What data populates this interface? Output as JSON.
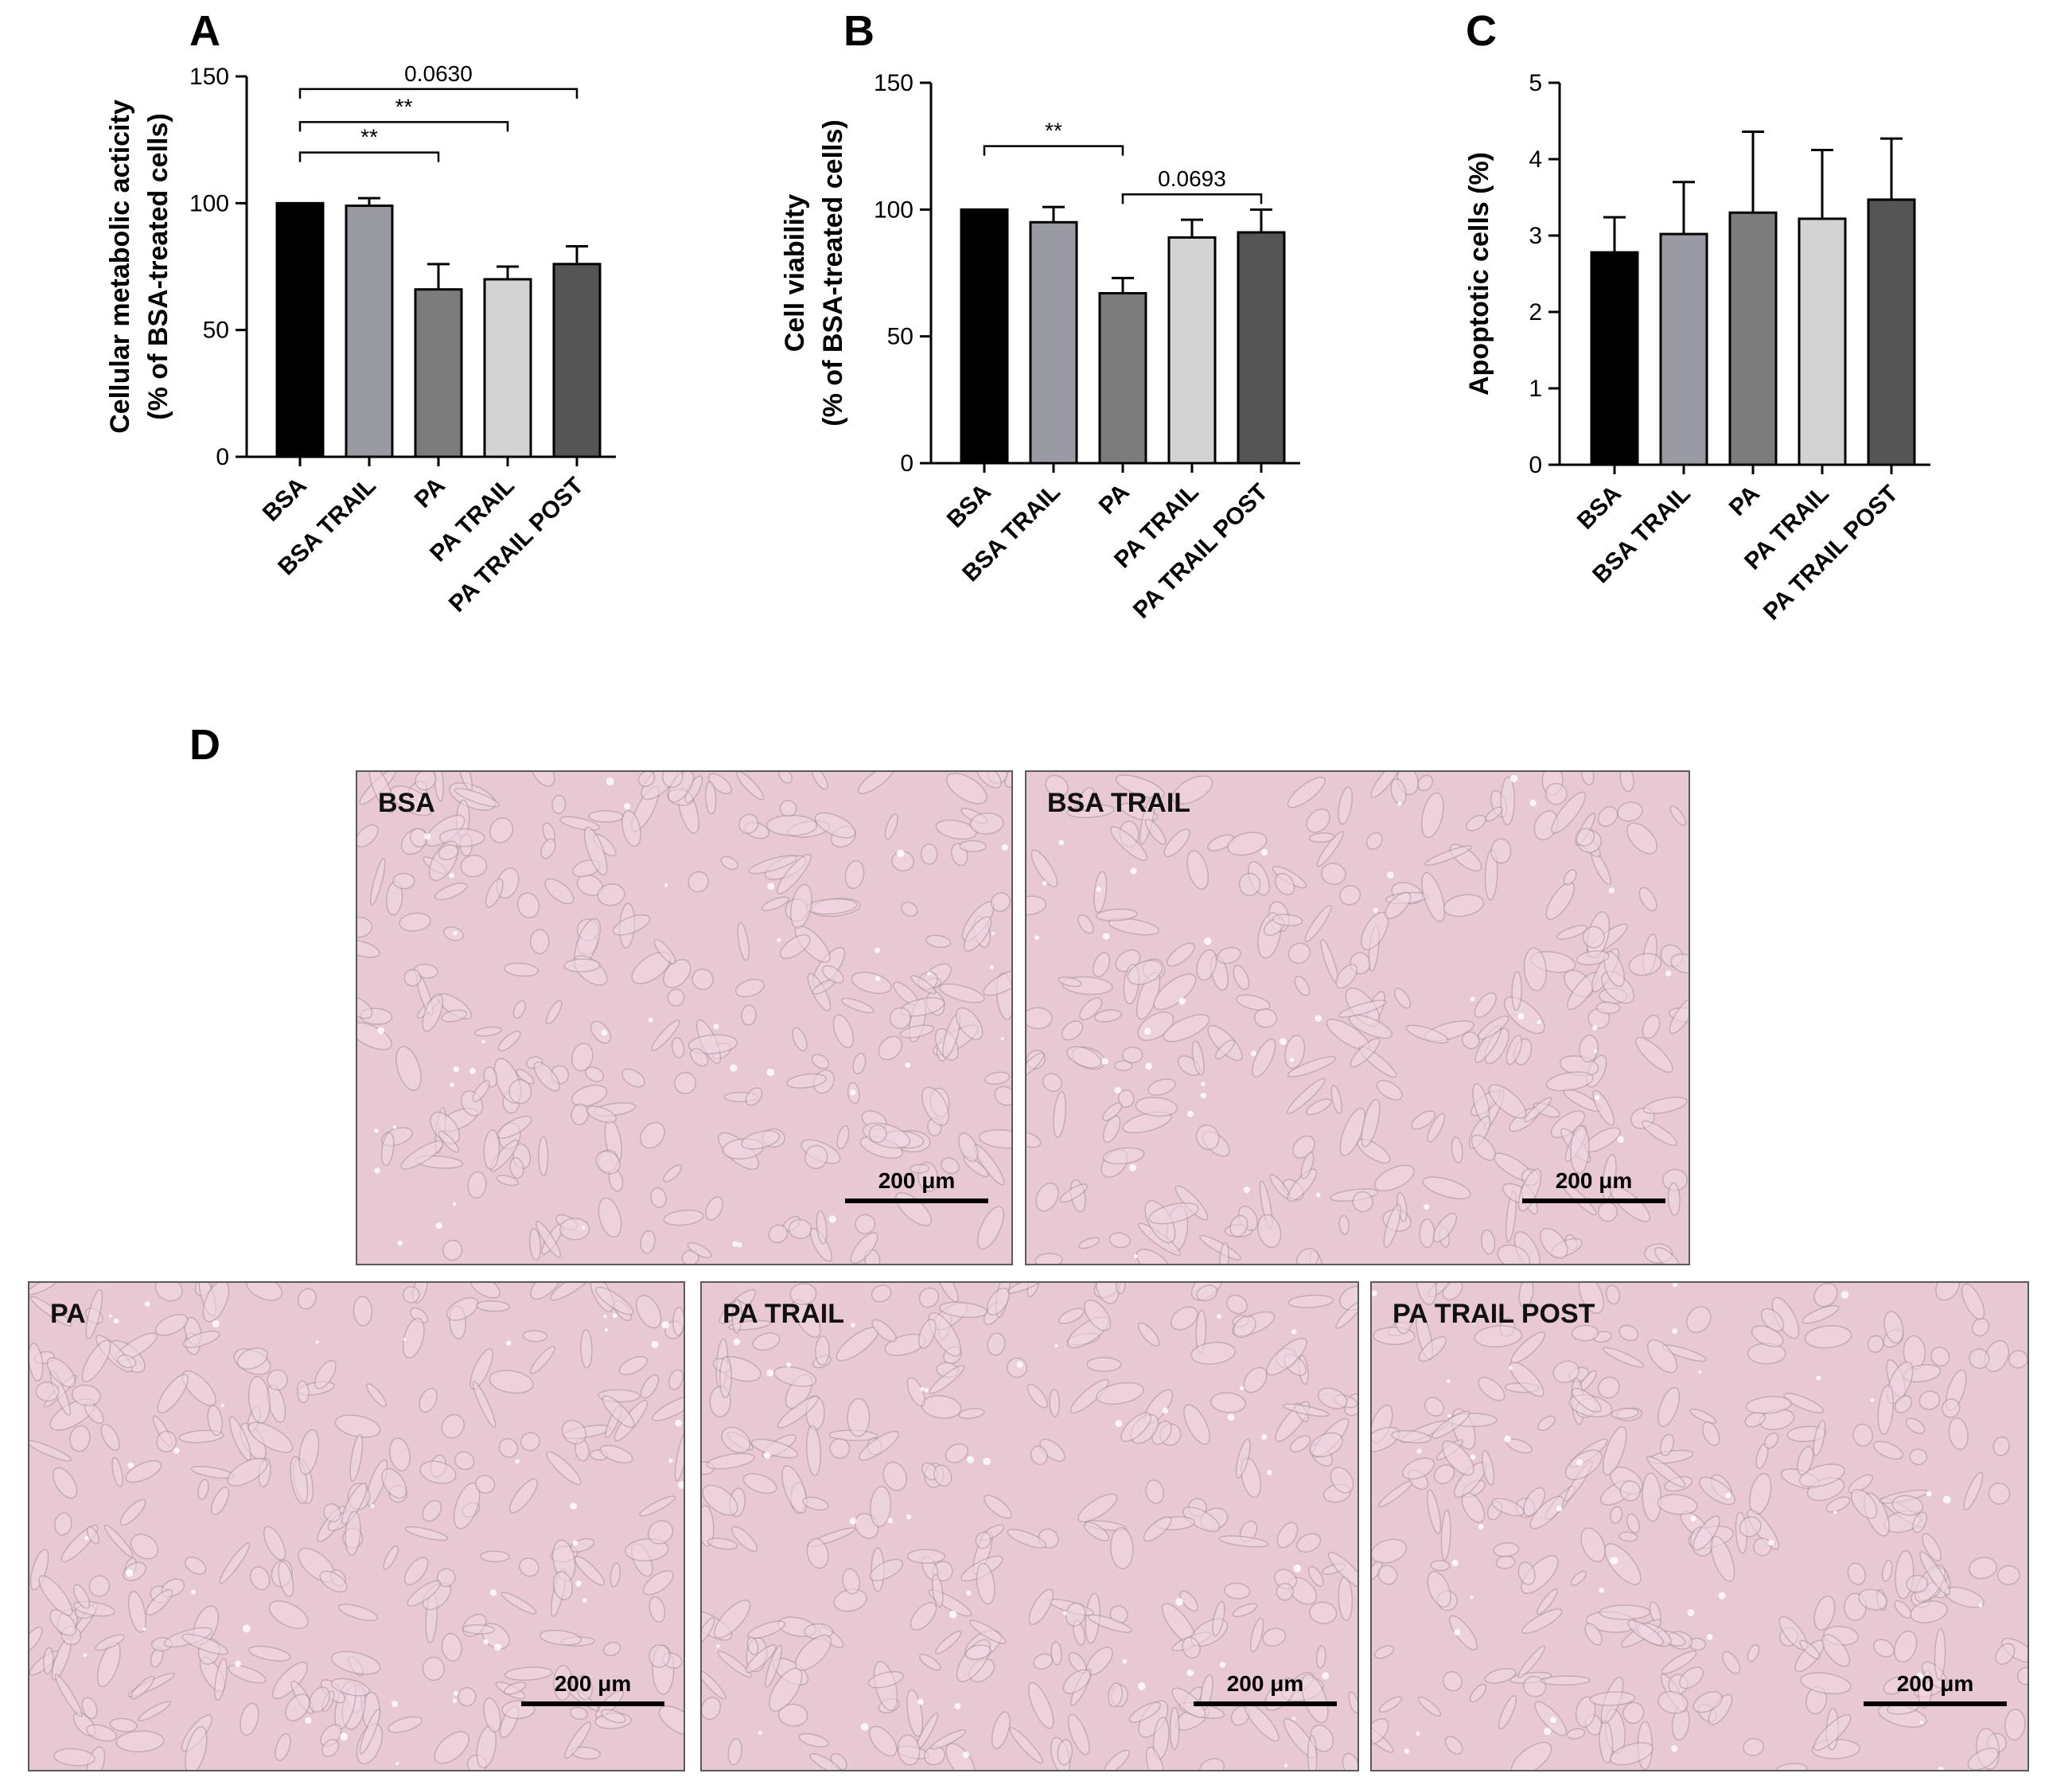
{
  "panels": {
    "a": "A",
    "b": "B",
    "c": "C",
    "d": "D"
  },
  "colors": {
    "bsa": "#000000",
    "bsa_trail": "#9a9aa3",
    "pa": "#7c7c7c",
    "pa_trail": "#d3d3d3",
    "pa_trail_post": "#555555",
    "micro_tint": "#e8c9d3"
  },
  "chart_data": [
    {
      "panel": "A",
      "type": "bar",
      "ylabel_lines": [
        "Cellular metabolic acticity",
        "(% of BSA-treated cells)"
      ],
      "xlabel": "",
      "categories": [
        "BSA",
        "BSA TRAIL",
        "PA",
        "PA TRAIL",
        "PA TRAIL POST"
      ],
      "values": [
        100,
        99,
        66,
        70,
        76
      ],
      "errors": [
        0,
        3,
        10,
        5,
        7
      ],
      "ylim": [
        0,
        150
      ],
      "yticks": [
        0,
        50,
        100,
        150
      ],
      "significance": [
        {
          "from": "BSA",
          "to": "PA",
          "label": "**",
          "y": 120
        },
        {
          "from": "BSA",
          "to": "PA TRAIL",
          "label": "**",
          "y": 132
        },
        {
          "from": "BSA",
          "to": "PA TRAIL POST",
          "label": "0.0630",
          "y": 145
        }
      ]
    },
    {
      "panel": "B",
      "type": "bar",
      "ylabel_lines": [
        "Cell viability",
        "(% of BSA-treated cells)"
      ],
      "xlabel": "",
      "categories": [
        "BSA",
        "BSA TRAIL",
        "PA",
        "PA TRAIL",
        "PA TRAIL POST"
      ],
      "values": [
        100,
        95,
        67,
        89,
        91
      ],
      "errors": [
        0,
        6,
        6,
        7,
        9
      ],
      "ylim": [
        0,
        150
      ],
      "yticks": [
        0,
        50,
        100,
        150
      ],
      "significance": [
        {
          "from": "BSA",
          "to": "PA",
          "label": "**",
          "y": 125
        },
        {
          "from": "PA",
          "to": "PA TRAIL POST",
          "label": "0.0693",
          "y": 106
        }
      ]
    },
    {
      "panel": "C",
      "type": "bar",
      "ylabel_lines": [
        "Apoptotic cells (%)"
      ],
      "xlabel": "",
      "categories": [
        "BSA",
        "BSA TRAIL",
        "PA",
        "PA TRAIL",
        "PA TRAIL POST"
      ],
      "values": [
        2.78,
        3.02,
        3.3,
        3.22,
        3.47
      ],
      "errors": [
        0.46,
        0.68,
        1.06,
        0.9,
        0.8
      ],
      "ylim": [
        0,
        5
      ],
      "yticks": [
        0,
        1,
        2,
        3,
        4,
        5
      ],
      "significance": []
    }
  ],
  "micrographs": [
    {
      "label": "BSA",
      "scale": "200 μm"
    },
    {
      "label": "BSA TRAIL",
      "scale": "200 μm"
    },
    {
      "label": "PA",
      "scale": "200 μm"
    },
    {
      "label": "PA TRAIL",
      "scale": "200 μm"
    },
    {
      "label": "PA TRAIL POST",
      "scale": "200 μm"
    }
  ]
}
